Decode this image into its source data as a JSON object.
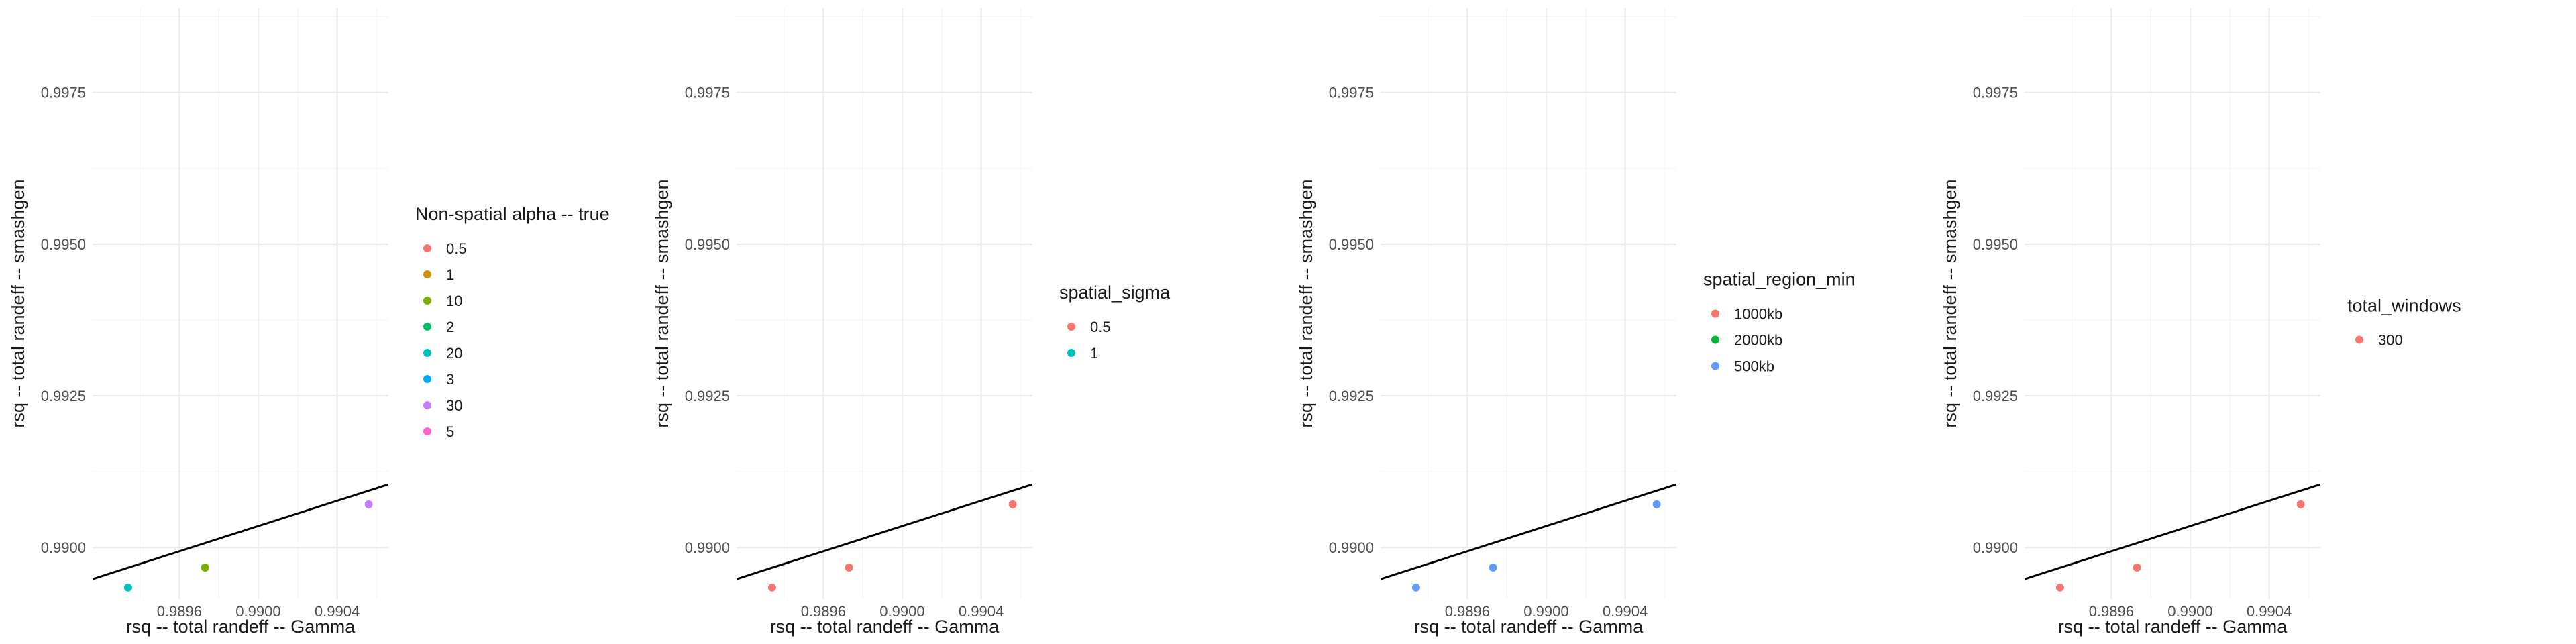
{
  "chart_data": [
    {
      "type": "scatter",
      "xlabel": "rsq -- total randeff -- Gamma",
      "ylabel": "rsq -- total randeff -- smashgen",
      "xlim": [
        0.98916,
        0.99066
      ],
      "ylim": [
        0.98915,
        0.99889
      ],
      "x_ticks": [
        0.9896,
        0.99,
        0.9904
      ],
      "x_tick_labels": [
        "0.9896",
        "0.9900",
        "0.9904"
      ],
      "y_ticks": [
        0.99,
        0.9925,
        0.995,
        0.9975
      ],
      "y_tick_labels": [
        "0.9900",
        "0.9925",
        "0.9950",
        "0.9975"
      ],
      "grid": true,
      "fit_line": {
        "x": [
          0.98916,
          0.99066
        ],
        "y": [
          0.98948,
          0.99104
        ]
      },
      "legend": {
        "title": "Non-spatial alpha -- true",
        "placement": "right",
        "entries": [
          {
            "label": "0.5",
            "color": "#F8766D"
          },
          {
            "label": "1",
            "color": "#CD9600"
          },
          {
            "label": "10",
            "color": "#7CAE00"
          },
          {
            "label": "2",
            "color": "#00BE67"
          },
          {
            "label": "20",
            "color": "#00BFC4"
          },
          {
            "label": "3",
            "color": "#00A9FF"
          },
          {
            "label": "30",
            "color": "#C77CFF"
          },
          {
            "label": "5",
            "color": "#FF61CC"
          }
        ]
      },
      "points": [
        {
          "x": 0.98934,
          "y": 0.98934,
          "color": "#00BFC4"
        },
        {
          "x": 0.98973,
          "y": 0.98967,
          "color": "#7CAE00"
        },
        {
          "x": 0.99056,
          "y": 0.99071,
          "color": "#C77CFF"
        }
      ]
    },
    {
      "type": "scatter",
      "xlabel": "rsq -- total randeff -- Gamma",
      "ylabel": "rsq -- total randeff -- smashgen",
      "xlim": [
        0.98916,
        0.99066
      ],
      "ylim": [
        0.98915,
        0.99889
      ],
      "x_ticks": [
        0.9896,
        0.99,
        0.9904
      ],
      "x_tick_labels": [
        "0.9896",
        "0.9900",
        "0.9904"
      ],
      "y_ticks": [
        0.99,
        0.9925,
        0.995,
        0.9975
      ],
      "y_tick_labels": [
        "0.9900",
        "0.9925",
        "0.9950",
        "0.9975"
      ],
      "grid": true,
      "fit_line": {
        "x": [
          0.98916,
          0.99066
        ],
        "y": [
          0.98948,
          0.99104
        ]
      },
      "legend": {
        "title": "spatial_sigma",
        "placement": "right",
        "entries": [
          {
            "label": "0.5",
            "color": "#F8766D"
          },
          {
            "label": "1",
            "color": "#00BFC4"
          }
        ]
      },
      "points": [
        {
          "x": 0.98934,
          "y": 0.98934,
          "color": "#F8766D"
        },
        {
          "x": 0.98973,
          "y": 0.98967,
          "color": "#F8766D"
        },
        {
          "x": 0.99056,
          "y": 0.99071,
          "color": "#F8766D"
        }
      ]
    },
    {
      "type": "scatter",
      "xlabel": "rsq -- total randeff -- Gamma",
      "ylabel": "rsq -- total randeff -- smashgen",
      "xlim": [
        0.98916,
        0.99066
      ],
      "ylim": [
        0.98915,
        0.99889
      ],
      "x_ticks": [
        0.9896,
        0.99,
        0.9904
      ],
      "x_tick_labels": [
        "0.9896",
        "0.9900",
        "0.9904"
      ],
      "y_ticks": [
        0.99,
        0.9925,
        0.995,
        0.9975
      ],
      "y_tick_labels": [
        "0.9900",
        "0.9925",
        "0.9950",
        "0.9975"
      ],
      "grid": true,
      "fit_line": {
        "x": [
          0.98916,
          0.99066
        ],
        "y": [
          0.98948,
          0.99104
        ]
      },
      "legend": {
        "title": "spatial_region_min",
        "placement": "right",
        "entries": [
          {
            "label": "1000kb",
            "color": "#F8766D"
          },
          {
            "label": "2000kb",
            "color": "#00BA38"
          },
          {
            "label": "500kb",
            "color": "#619CFF"
          }
        ]
      },
      "points": [
        {
          "x": 0.98934,
          "y": 0.98934,
          "color": "#619CFF"
        },
        {
          "x": 0.98973,
          "y": 0.98967,
          "color": "#619CFF"
        },
        {
          "x": 0.99056,
          "y": 0.99071,
          "color": "#619CFF"
        }
      ]
    },
    {
      "type": "scatter",
      "xlabel": "rsq -- total randeff -- Gamma",
      "ylabel": "rsq -- total randeff -- smashgen",
      "xlim": [
        0.98916,
        0.99066
      ],
      "ylim": [
        0.98915,
        0.99889
      ],
      "x_ticks": [
        0.9896,
        0.99,
        0.9904
      ],
      "x_tick_labels": [
        "0.9896",
        "0.9900",
        "0.9904"
      ],
      "y_ticks": [
        0.99,
        0.9925,
        0.995,
        0.9975
      ],
      "y_tick_labels": [
        "0.9900",
        "0.9925",
        "0.9950",
        "0.9975"
      ],
      "grid": true,
      "fit_line": {
        "x": [
          0.98916,
          0.99066
        ],
        "y": [
          0.98948,
          0.99104
        ]
      },
      "legend": {
        "title": "total_windows",
        "placement": "right",
        "entries": [
          {
            "label": "300",
            "color": "#F8766D"
          }
        ]
      },
      "points": [
        {
          "x": 0.98934,
          "y": 0.98934,
          "color": "#F8766D"
        },
        {
          "x": 0.98973,
          "y": 0.98967,
          "color": "#F8766D"
        },
        {
          "x": 0.99056,
          "y": 0.99071,
          "color": "#F8766D"
        }
      ]
    }
  ]
}
